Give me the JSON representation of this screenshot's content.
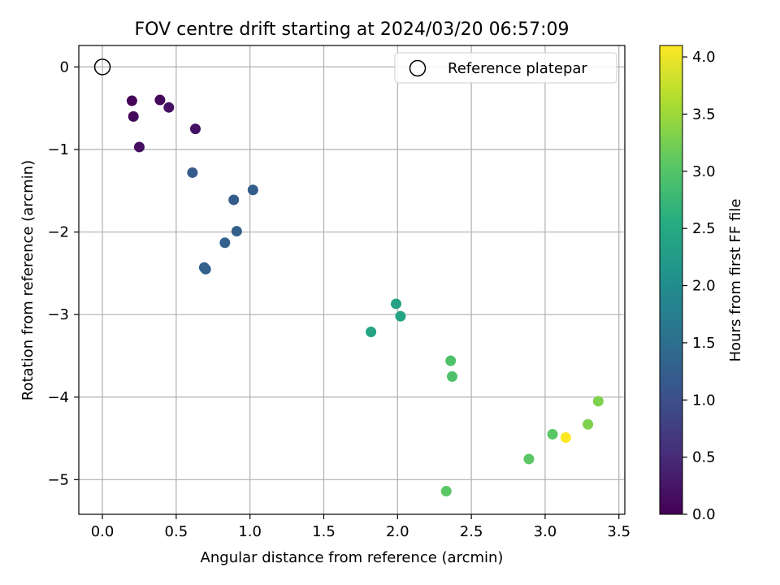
{
  "chart_data": {
    "type": "scatter",
    "title": "FOV centre drift starting at 2024/03/20 06:57:09",
    "xlabel": "Angular distance from reference (arcmin)",
    "ylabel": "Rotation from reference (arcmin)",
    "xlim": [
      -0.16,
      3.54
    ],
    "ylim": [
      -5.42,
      0.26
    ],
    "xticks": [
      0.0,
      0.5,
      1.0,
      1.5,
      2.0,
      2.5,
      3.0,
      3.5
    ],
    "xtick_labels": [
      "0.0",
      "0.5",
      "1.0",
      "1.5",
      "2.0",
      "2.5",
      "3.0",
      "3.5"
    ],
    "yticks": [
      0,
      -1,
      -2,
      -3,
      -4,
      -5
    ],
    "ytick_labels": [
      "0",
      "−1",
      "−2",
      "−3",
      "−4",
      "−5"
    ],
    "grid": true,
    "legend": {
      "placement": "top-right",
      "entries": [
        "Reference platepar"
      ]
    },
    "reference_point": {
      "x": 0.0,
      "y": 0.0
    },
    "colorbar": {
      "label": "Hours from first FF file",
      "range": [
        0.0,
        4.1
      ],
      "ticks": [
        0.0,
        0.5,
        1.0,
        1.5,
        2.0,
        2.5,
        3.0,
        3.5,
        4.0
      ],
      "tick_labels": [
        "0.0",
        "0.5",
        "1.0",
        "1.5",
        "2.0",
        "2.5",
        "3.0",
        "3.5",
        "4.0"
      ],
      "colormap": "viridis"
    },
    "points": [
      {
        "x": 0.2,
        "y": -0.41,
        "hours": 0.05
      },
      {
        "x": 0.21,
        "y": -0.6,
        "hours": 0.1
      },
      {
        "x": 0.25,
        "y": -0.97,
        "hours": 0.15
      },
      {
        "x": 0.39,
        "y": -0.4,
        "hours": 0.1
      },
      {
        "x": 0.45,
        "y": -0.49,
        "hours": 0.2
      },
      {
        "x": 0.63,
        "y": -0.75,
        "hours": 0.2
      },
      {
        "x": 0.61,
        "y": -1.28,
        "hours": 1.2
      },
      {
        "x": 0.89,
        "y": -1.61,
        "hours": 1.2
      },
      {
        "x": 1.02,
        "y": -1.49,
        "hours": 1.25
      },
      {
        "x": 0.91,
        "y": -1.99,
        "hours": 1.25
      },
      {
        "x": 0.83,
        "y": -2.13,
        "hours": 1.3
      },
      {
        "x": 0.69,
        "y": -2.43,
        "hours": 1.3
      },
      {
        "x": 0.7,
        "y": -2.45,
        "hours": 1.3
      },
      {
        "x": 1.99,
        "y": -2.87,
        "hours": 2.35
      },
      {
        "x": 2.02,
        "y": -3.02,
        "hours": 2.4
      },
      {
        "x": 1.82,
        "y": -3.21,
        "hours": 2.4
      },
      {
        "x": 2.36,
        "y": -3.56,
        "hours": 2.95
      },
      {
        "x": 2.37,
        "y": -3.75,
        "hours": 2.95
      },
      {
        "x": 3.36,
        "y": -4.05,
        "hours": 3.3
      },
      {
        "x": 3.29,
        "y": -4.33,
        "hours": 3.3
      },
      {
        "x": 3.05,
        "y": -4.45,
        "hours": 3.05
      },
      {
        "x": 2.89,
        "y": -4.75,
        "hours": 3.05
      },
      {
        "x": 2.33,
        "y": -5.14,
        "hours": 3.05
      },
      {
        "x": 3.14,
        "y": -4.49,
        "hours": 4.1
      }
    ]
  }
}
